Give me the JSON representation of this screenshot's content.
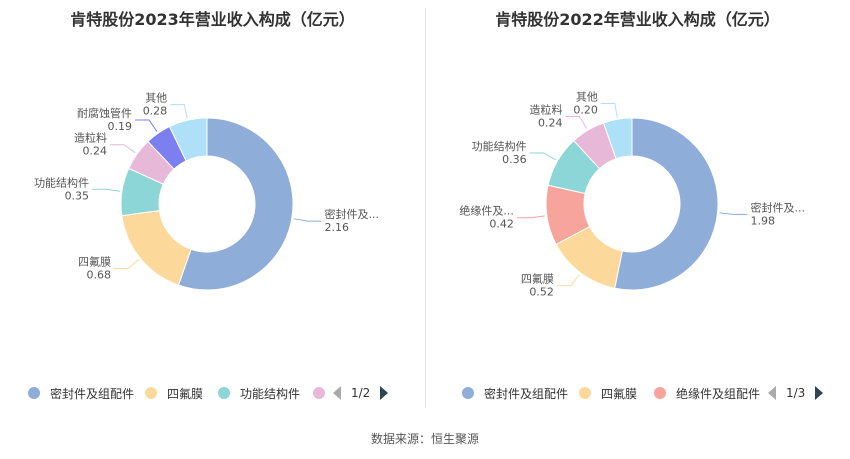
{
  "chart_data": [
    {
      "type": "pie",
      "title": "肯特股份2023年营业收入构成（亿元）",
      "slices": [
        {
          "name": "密封件及组配件",
          "label": "密封件及...",
          "value": 2.16,
          "color": "#8eadd9"
        },
        {
          "name": "四氟膜",
          "label": "四氟膜",
          "value": 0.68,
          "color": "#fcd99a"
        },
        {
          "name": "功能结构件",
          "label": "功能结构件",
          "value": 0.35,
          "color": "#8dd6d8"
        },
        {
          "name": "造粒料",
          "label": "造粒料",
          "value": 0.24,
          "color": "#e8b8d8"
        },
        {
          "name": "耐腐蚀管件",
          "label": "耐腐蚀管件",
          "value": 0.19,
          "color": "#7b7ff0"
        },
        {
          "name": "其他",
          "label": "其他",
          "value": 0.28,
          "color": "#aee0f8"
        }
      ],
      "legend": {
        "visible": [
          "密封件及组配件",
          "四氟膜",
          "功能结构件"
        ],
        "page": "1/2"
      }
    },
    {
      "type": "pie",
      "title": "肯特股份2022年营业收入构成（亿元）",
      "slices": [
        {
          "name": "密封件及组配件",
          "label": "密封件及...",
          "value": 1.98,
          "color": "#8eadd9"
        },
        {
          "name": "四氟膜",
          "label": "四氟膜",
          "value": 0.52,
          "color": "#fcd99a"
        },
        {
          "name": "绝缘件及组配件",
          "label": "绝缘件及...",
          "value": 0.42,
          "color": "#f6a49c"
        },
        {
          "name": "功能结构件",
          "label": "功能结构件",
          "value": 0.36,
          "color": "#8dd6d8"
        },
        {
          "name": "造粒料",
          "label": "造粒料",
          "value": 0.24,
          "color": "#e8b8d8"
        },
        {
          "name": "其他",
          "label": "其他",
          "value": 0.2,
          "color": "#aee0f8"
        }
      ],
      "legend": {
        "visible": [
          "密封件及组配件",
          "四氟膜",
          "绝缘件及组配件"
        ],
        "page": "1/3"
      }
    }
  ],
  "footer": "数据来源：恒生聚源"
}
